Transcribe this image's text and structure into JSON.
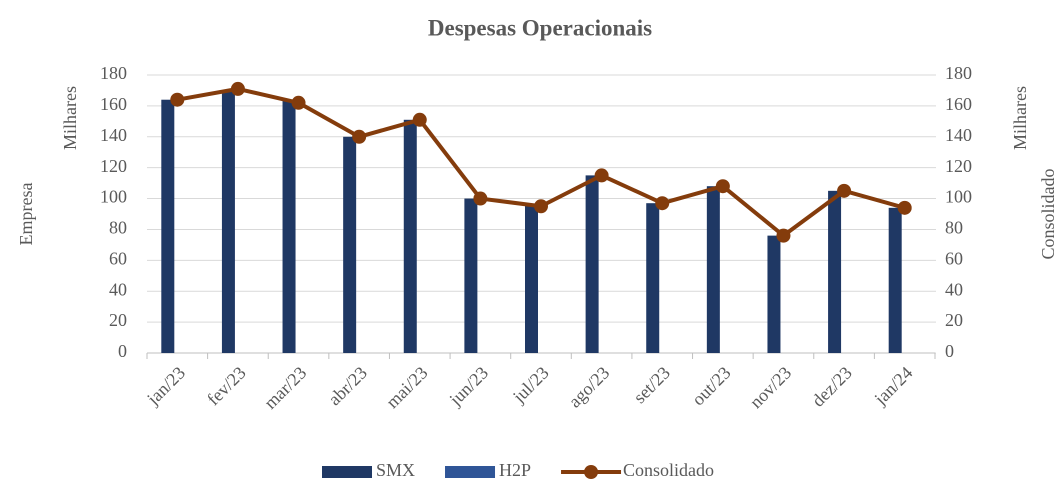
{
  "chart_data": {
    "type": "bar_line",
    "title": "Despesas Operacionais",
    "ylabel": "Empresa",
    "yunit": "Milhares",
    "y2label": "Consolidado",
    "y2unit": "Milhares",
    "categories": [
      "jan/23",
      "fev/23",
      "mar/23",
      "abr/23",
      "mai/23",
      "jun/23",
      "jul/23",
      "ago/23",
      "set/23",
      "out/23",
      "nov/23",
      "dez/23",
      "jan/24"
    ],
    "series": [
      {
        "name": "SMX",
        "color": "#1f3864",
        "type": "bar",
        "values": [
          164,
          170,
          164,
          140,
          151,
          100,
          96,
          115,
          97,
          108,
          76,
          105,
          94
        ]
      },
      {
        "name": "H2P",
        "color": "#2f5597",
        "type": "bar",
        "values": [
          0,
          0,
          0,
          0,
          0,
          0,
          0,
          0,
          0,
          0,
          0,
          0,
          0
        ]
      },
      {
        "name": "Consolidado",
        "color": "#843c0c",
        "type": "line",
        "axis": "y2",
        "values": [
          164,
          171,
          162,
          140,
          151,
          100,
          95,
          115,
          97,
          108,
          76,
          105,
          94
        ]
      }
    ],
    "ylim": [
      0,
      180
    ],
    "yticks": [
      0,
      20,
      40,
      60,
      80,
      100,
      120,
      140,
      160,
      180
    ],
    "y2lim": [
      0,
      180
    ],
    "y2ticks": [
      0,
      20,
      40,
      60,
      80,
      100,
      120,
      140,
      160,
      180
    ],
    "grid": true,
    "legend": "bottom"
  }
}
